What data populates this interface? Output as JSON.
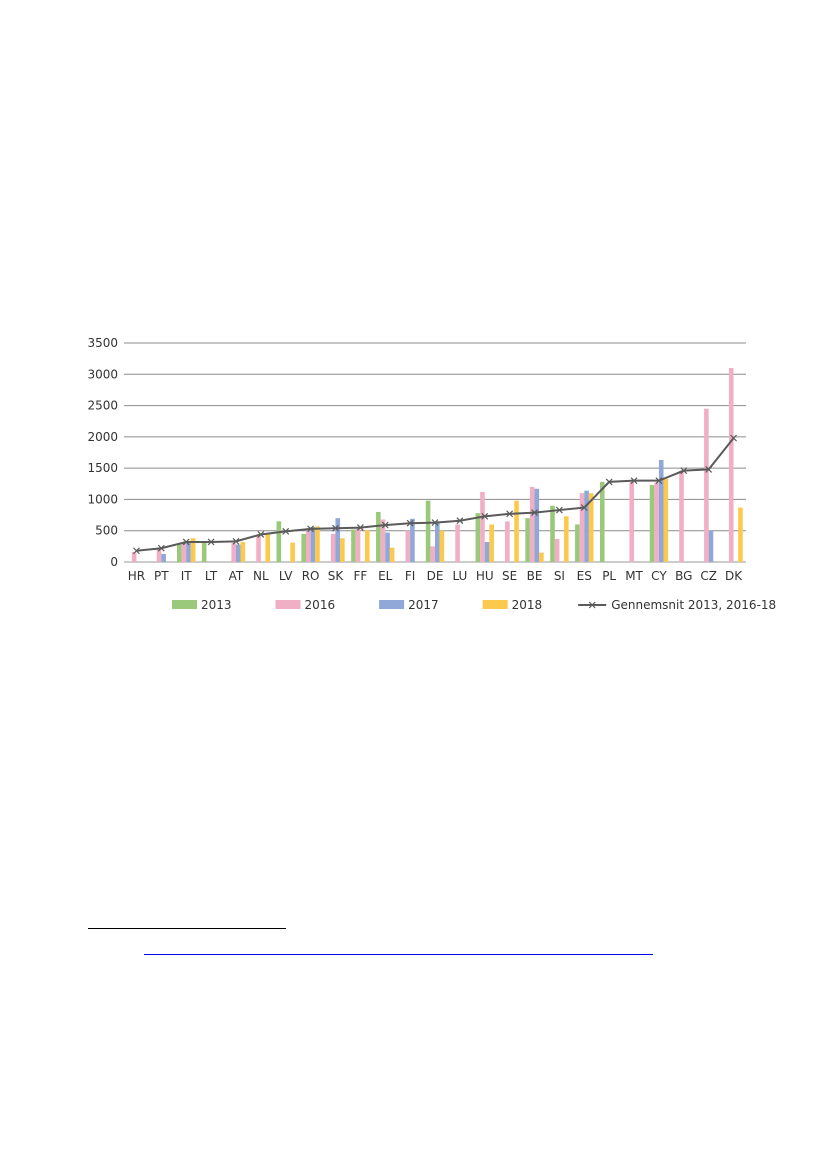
{
  "chart_data": {
    "type": "bar",
    "categories": [
      "HR",
      "PT",
      "IT",
      "LT",
      "AT",
      "NL",
      "LV",
      "RO",
      "SK",
      "FF",
      "EL",
      "FI",
      "DE",
      "LU",
      "HU",
      "SE",
      "BE",
      "SI",
      "ES",
      "PL",
      "MT",
      "CY",
      "BG",
      "CZ",
      "DK"
    ],
    "series": [
      {
        "name": "2013",
        "color": "#9bc97b",
        "values": [
          null,
          null,
          280,
          330,
          null,
          null,
          650,
          450,
          null,
          520,
          800,
          null,
          980,
          null,
          780,
          null,
          700,
          900,
          600,
          1280,
          null,
          1230,
          null,
          null,
          null
        ]
      },
      {
        "name": "2016",
        "color": "#f1afc6",
        "values": [
          160,
          230,
          300,
          null,
          300,
          440,
          null,
          500,
          450,
          540,
          680,
          500,
          250,
          600,
          1120,
          650,
          1200,
          370,
          1100,
          null,
          1280,
          1270,
          1460,
          2450,
          3100
        ]
      },
      {
        "name": "2017",
        "color": "#8fa8d8",
        "values": [
          null,
          130,
          320,
          null,
          280,
          null,
          null,
          560,
          700,
          null,
          470,
          690,
          640,
          null,
          320,
          null,
          1170,
          null,
          1140,
          null,
          null,
          1630,
          null,
          500,
          null
        ]
      },
      {
        "name": "2018",
        "color": "#fbc94d",
        "values": [
          null,
          null,
          380,
          null,
          320,
          460,
          310,
          570,
          380,
          510,
          230,
          null,
          500,
          null,
          600,
          980,
          150,
          730,
          1100,
          null,
          null,
          1330,
          null,
          null,
          870
        ]
      }
    ],
    "line": {
      "name": "Gennemsnit 2013, 2016-18",
      "color": "#5a5a5a",
      "values": [
        180,
        220,
        320,
        320,
        330,
        440,
        490,
        530,
        540,
        550,
        590,
        620,
        630,
        660,
        730,
        770,
        790,
        830,
        870,
        1280,
        1300,
        1300,
        1460,
        1480,
        1980
      ]
    },
    "ylim": [
      0,
      3500
    ],
    "yticks": [
      0,
      500,
      1000,
      1500,
      2000,
      2500,
      3000,
      3500
    ],
    "yticklabels": [
      "0",
      "500",
      "1000",
      "1500",
      "2000",
      "2500",
      "3000",
      "3500"
    ],
    "grid": true,
    "legend": "bottom"
  }
}
